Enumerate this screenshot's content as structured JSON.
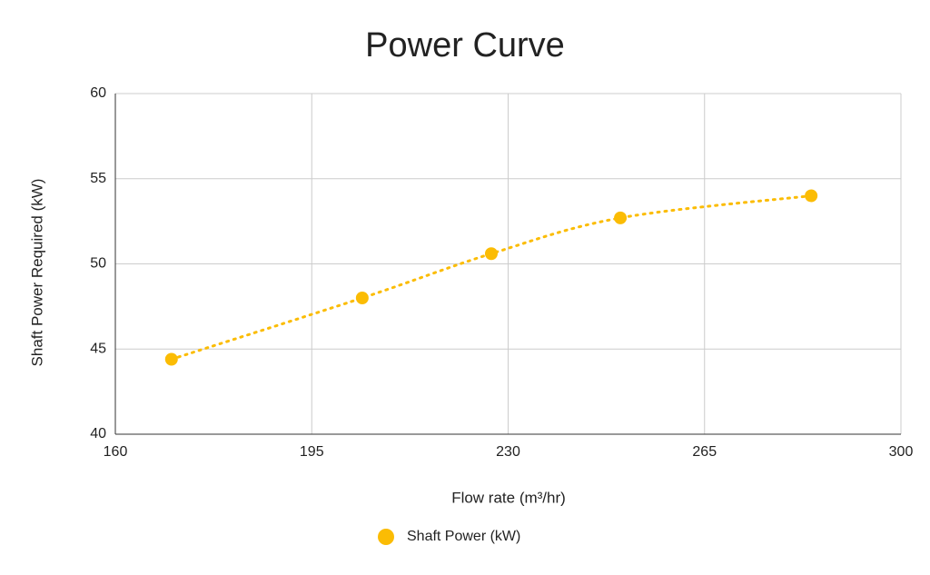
{
  "chart_data": {
    "type": "scatter",
    "title": "Power Curve",
    "x_label": "Flow rate (m³/hr)",
    "y_label": "Shaft Power Required (kW)",
    "series": [
      {
        "name": "Shaft Power (kW)",
        "color": "#fbbc04",
        "x": [
          170,
          204,
          227,
          250,
          284
        ],
        "values": [
          44.4,
          48.0,
          50.6,
          52.7,
          54.0
        ]
      }
    ],
    "xlim": [
      160,
      300
    ],
    "xticks": [
      160,
      195,
      230,
      265,
      300
    ],
    "ylim": [
      40,
      60
    ],
    "yticks": [
      40,
      45,
      50,
      55,
      60
    ],
    "grid": true,
    "line": "dotted",
    "smooth": true,
    "legend": "bottom"
  }
}
